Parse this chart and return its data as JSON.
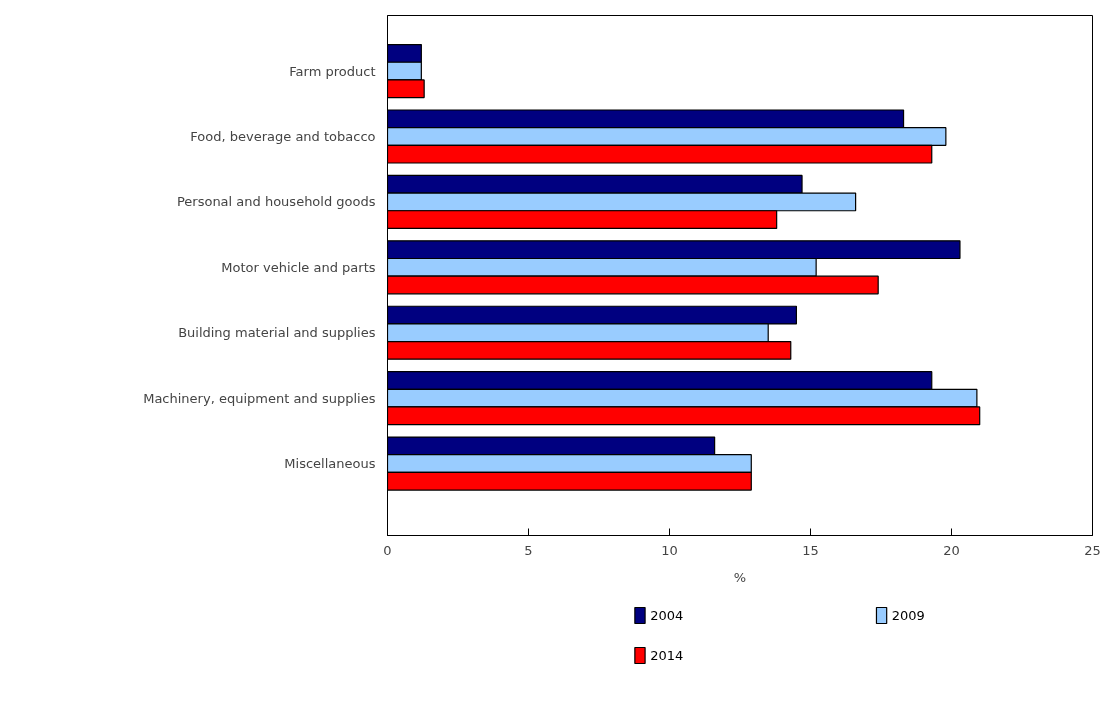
{
  "chart_data": {
    "type": "bar",
    "orientation": "horizontal",
    "xlabel": "%",
    "legend": "bottom",
    "categories": [
      "Farm product",
      "Food, beverage and tobacco",
      "Personal and household goods",
      "Motor vehicle and parts",
      "Building material and supplies",
      "Machinery, equipment and supplies",
      "Miscellaneous"
    ],
    "series": [
      {
        "name": "2004",
        "color": "#000080",
        "values": [
          1.2,
          18.3,
          14.7,
          20.3,
          14.5,
          19.3,
          11.6
        ]
      },
      {
        "name": "2009",
        "color": "#99ccff",
        "values": [
          1.2,
          19.8,
          16.6,
          15.2,
          13.5,
          20.9,
          12.9
        ]
      },
      {
        "name": "2014",
        "color": "#ff0000",
        "values": [
          1.3,
          19.3,
          13.8,
          17.4,
          14.3,
          21.0,
          12.9
        ]
      }
    ],
    "xlim": [
      0,
      25
    ],
    "xticks": [
      0,
      5,
      10,
      15,
      20,
      25
    ]
  }
}
